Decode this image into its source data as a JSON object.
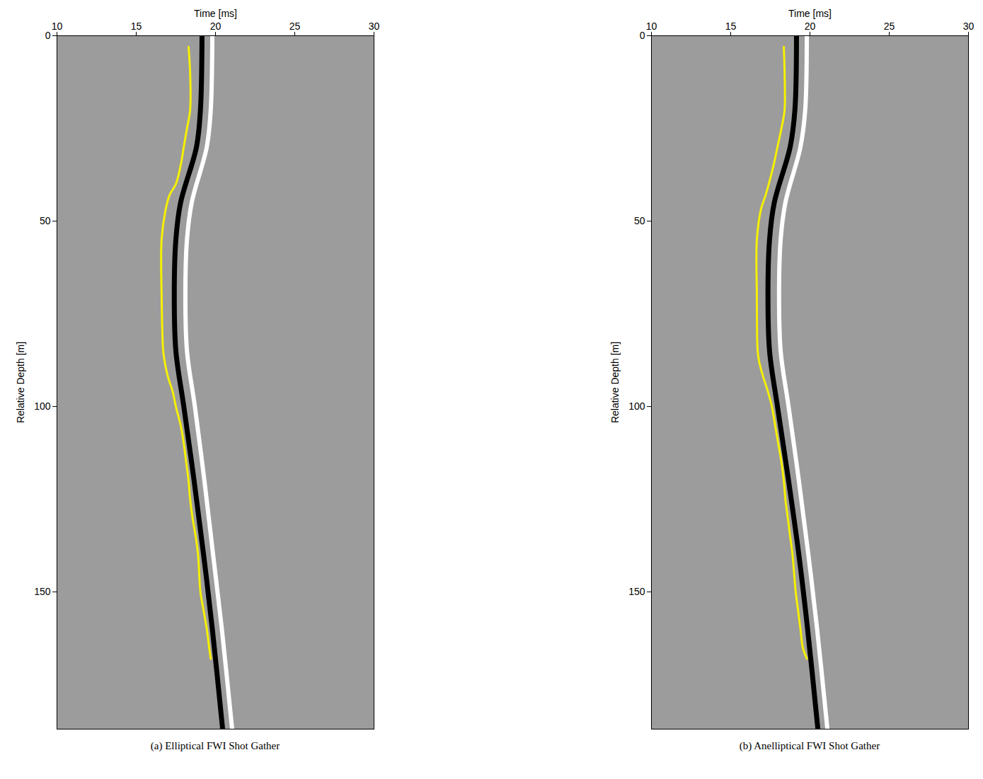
{
  "chart_data": [
    {
      "type": "line",
      "title": "(a) Elliptical FWI Shot Gather",
      "x_label": "Time [ms]",
      "y_label": "Relative Depth [m]",
      "xlim": [
        10,
        30
      ],
      "xticks": [
        10,
        15,
        20,
        25,
        30
      ],
      "ylim": [
        0,
        187
      ],
      "yticks": [
        0,
        50,
        100,
        150
      ],
      "series": [
        {
          "color": "#ffffff",
          "x": [
            19.8,
            19.7,
            19.45,
            18.5,
            18.2,
            18.1,
            18.2,
            18.7,
            19.3,
            19.85,
            20.4,
            21.05
          ],
          "y": [
            0,
            20,
            30,
            45,
            55,
            70,
            85,
            100,
            120,
            140,
            160,
            187
          ]
        },
        {
          "color": "#000000",
          "x": [
            19.15,
            19.05,
            18.8,
            17.8,
            17.5,
            17.4,
            17.5,
            18.0,
            18.65,
            19.25,
            19.8,
            20.45
          ],
          "y": [
            0,
            20,
            30,
            45,
            55,
            70,
            85,
            100,
            120,
            140,
            160,
            187
          ]
        },
        {
          "color": "#f5f000",
          "x": [
            18.3,
            18.4,
            18.4,
            18.2,
            18.0,
            17.8,
            17.5,
            17.1,
            16.85,
            16.6,
            16.6,
            16.7,
            16.8,
            17.0,
            17.3,
            17.5,
            17.8,
            18.0,
            18.15,
            18.3,
            18.4,
            18.55,
            18.75,
            18.9,
            19.05,
            19.25,
            19.45,
            19.6,
            19.7
          ],
          "y": [
            3,
            10,
            20,
            25,
            30,
            35,
            40,
            43,
            47,
            55,
            70,
            85,
            88,
            92,
            96,
            100,
            105,
            110,
            115,
            120,
            125,
            130,
            135,
            140,
            150,
            155,
            160,
            165,
            168
          ]
        }
      ]
    },
    {
      "type": "line",
      "title": "(b) Anelliptical FWI Shot Gather",
      "x_label": "Time [ms]",
      "y_label": "Relative Depth [m]",
      "xlim": [
        10,
        30
      ],
      "xticks": [
        10,
        15,
        20,
        25,
        30
      ],
      "ylim": [
        0,
        187
      ],
      "yticks": [
        0,
        50,
        100,
        150
      ],
      "series": [
        {
          "color": "#ffffff",
          "x": [
            19.8,
            19.7,
            19.4,
            18.45,
            18.15,
            18.05,
            18.15,
            18.65,
            19.3,
            19.9,
            20.45,
            21.1
          ],
          "y": [
            0,
            20,
            30,
            45,
            55,
            70,
            85,
            100,
            120,
            140,
            160,
            187
          ]
        },
        {
          "color": "#000000",
          "x": [
            19.15,
            19.05,
            18.75,
            17.75,
            17.45,
            17.35,
            17.45,
            17.95,
            18.65,
            19.3,
            19.85,
            20.5
          ],
          "y": [
            0,
            20,
            30,
            45,
            55,
            70,
            85,
            100,
            120,
            140,
            160,
            187
          ]
        },
        {
          "color": "#f5f000",
          "x": [
            18.35,
            18.4,
            18.4,
            18.2,
            17.95,
            17.7,
            17.4,
            17.2,
            16.9,
            16.65,
            16.65,
            16.7,
            16.8,
            17.05,
            17.35,
            17.6,
            17.8,
            18.0,
            18.2,
            18.35,
            18.45,
            18.6,
            18.75,
            18.9,
            19.1,
            19.25,
            19.4,
            19.55,
            19.8
          ],
          "y": [
            3,
            10,
            20,
            25,
            30,
            35,
            40,
            43,
            47,
            55,
            70,
            85,
            88,
            92,
            96,
            100,
            105,
            110,
            115,
            120,
            125,
            130,
            135,
            140,
            150,
            155,
            160,
            165,
            168
          ]
        }
      ]
    }
  ]
}
